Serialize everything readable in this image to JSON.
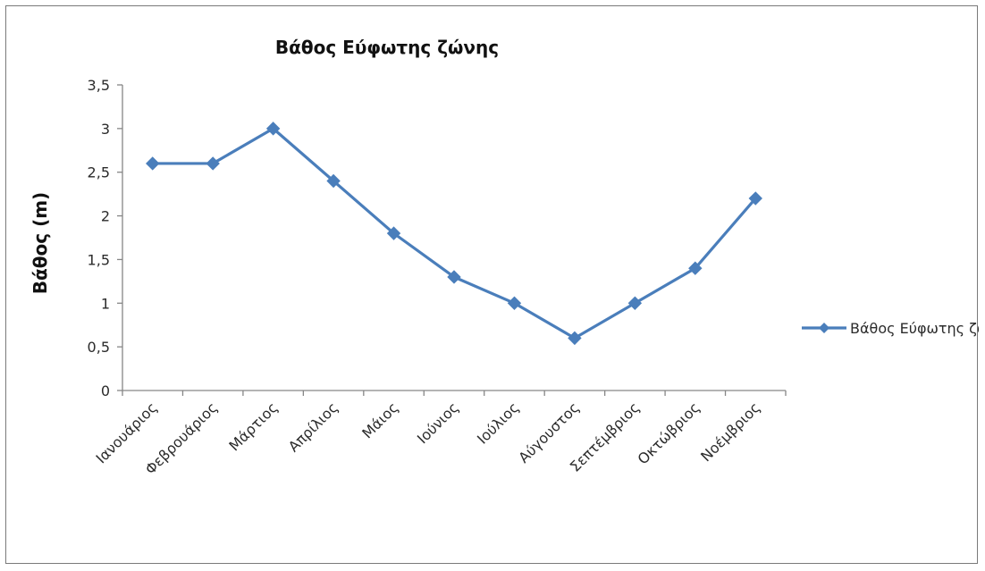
{
  "chart_data": {
    "type": "line",
    "title": "Βάθος Εύφωτης ζώνης",
    "xlabel": "",
    "ylabel": "Βάθος (m)",
    "categories": [
      "Ιανουάριος",
      "Φεβρουάριος",
      "Μάρτιος",
      "Απρίλιος",
      "Μάιος",
      "Ιούνιος",
      "Ιούλιος",
      "Αύγουστος",
      "Σεπτέμβριος",
      "Οκτώβριος",
      "Νοέμβριος"
    ],
    "series": [
      {
        "name": "Βάθος Εύφωτης ζώνης",
        "color": "#4a7ebb",
        "marker": "diamond",
        "values": [
          2.6,
          2.6,
          3.0,
          2.4,
          1.8,
          1.3,
          1.0,
          0.6,
          1.0,
          1.4,
          2.2
        ]
      }
    ],
    "ylim": [
      0,
      3.5
    ],
    "yticks": [
      0,
      0.5,
      1,
      1.5,
      2,
      2.5,
      3,
      3.5
    ],
    "ytick_labels": [
      "0",
      "0,5",
      "1",
      "1,5",
      "2",
      "2,5",
      "3",
      "3,5"
    ],
    "grid": false,
    "legend": "right"
  }
}
